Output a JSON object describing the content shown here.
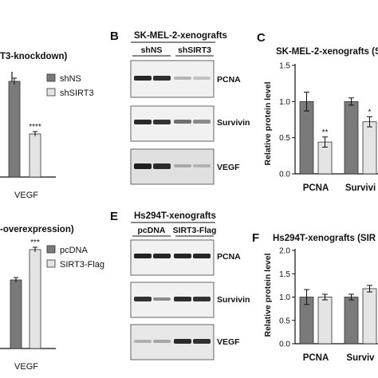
{
  "panels": {
    "A": {
      "title": "T3-knockdown)",
      "legend": [
        "shNS",
        "shSIRT3"
      ],
      "tick": "VEGF",
      "sig": "****"
    },
    "B": {
      "letter": "B",
      "title": "SK-MEL-2-xenografts",
      "groups": [
        "shNS",
        "shSIRT3"
      ],
      "rows": [
        "PCNA",
        "Survivin",
        "VEGF"
      ]
    },
    "C": {
      "letter": "C",
      "title": "SK-MEL-2-xenografts (S",
      "ylabel": "Relative protein level",
      "yticks": [
        "1.5",
        "1.0",
        "0.5",
        "0.0"
      ],
      "ticks": [
        "PCNA",
        "Survivi"
      ],
      "sig": [
        "**",
        "*"
      ]
    },
    "D": {
      "title": "-overexpression)",
      "legend": [
        "pcDNA",
        "SIRT3-Flag"
      ],
      "tick": "VEGF",
      "sig": "***"
    },
    "E": {
      "letter": "E",
      "title": "Hs294T-xenografts",
      "groups": [
        "pcDNA",
        "SIRT3-Flag"
      ],
      "rows": [
        "PCNA",
        "Survivin",
        "VEGF"
      ]
    },
    "F": {
      "letter": "F",
      "title": "Hs294T-xenografts (SIR",
      "ylabel": "Relative protein level",
      "yticks": [
        "2.0",
        "1.5",
        "1.0",
        "0.5",
        "0.0"
      ],
      "ticks": [
        "PCNA",
        "Surviv"
      ]
    }
  },
  "colors": {
    "dark_bar": "#7a7a7a",
    "light_bar": "#e4e4e4"
  },
  "chart_data": [
    {
      "type": "bar",
      "panel": "C",
      "categories": [
        "PCNA",
        "Survivi"
      ],
      "series": [
        {
          "name": "shNS",
          "values": [
            1.0,
            1.0
          ],
          "errors": [
            0.13,
            0.05
          ]
        },
        {
          "name": "shSIRT3",
          "values": [
            0.44,
            0.72
          ],
          "errors": [
            0.07,
            0.07
          ]
        }
      ],
      "ylabel": "Relative protein level",
      "ylim": [
        0,
        1.5
      ]
    },
    {
      "type": "bar",
      "panel": "F",
      "categories": [
        "PCNA",
        "Surviv"
      ],
      "series": [
        {
          "name": "pcDNA",
          "values": [
            1.0,
            1.0
          ],
          "errors": [
            0.16,
            0.06
          ]
        },
        {
          "name": "SIRT3-Flag",
          "values": [
            1.0,
            1.18
          ],
          "errors": [
            0.06,
            0.07
          ]
        }
      ],
      "ylabel": "Relative protein level",
      "ylim": [
        0,
        2.0
      ]
    }
  ]
}
